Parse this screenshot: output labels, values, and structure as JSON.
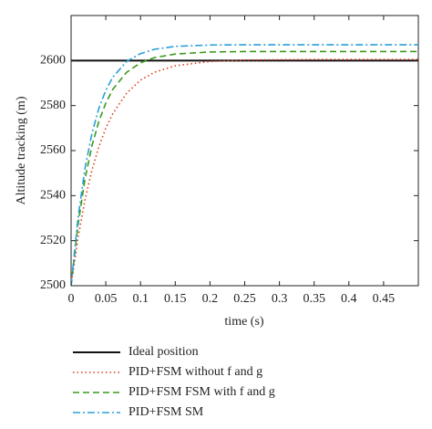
{
  "chart_data": {
    "type": "line",
    "x_label": "time (s)",
    "y_label": "Altitude tracking (m)",
    "x": [
      0,
      0.01,
      0.02,
      0.03,
      0.04,
      0.05,
      0.06,
      0.08,
      0.1,
      0.12,
      0.15,
      0.2,
      0.25,
      0.3,
      0.35,
      0.4,
      0.45,
      0.5
    ],
    "series": [
      {
        "name": "Ideal position",
        "color": "#111111",
        "style": "solid",
        "values": [
          2600,
          2600,
          2600,
          2600,
          2600,
          2600,
          2600,
          2600,
          2600,
          2600,
          2600,
          2600,
          2600,
          2600,
          2600,
          2600,
          2600,
          2600
        ]
      },
      {
        "name": "PID+FSM without f and g",
        "color": "#e03c1e",
        "style": "dotted",
        "values": [
          2500,
          2521.3,
          2538.1,
          2551.3,
          2561.7,
          2570.0,
          2576.4,
          2585.5,
          2591.3,
          2594.8,
          2597.7,
          2599.6,
          2600.2,
          2600.4,
          2600.5,
          2600.5,
          2600.5,
          2600.5
        ]
      },
      {
        "name": "PID+FSM FSM with f and g",
        "color": "#3a9a1a",
        "style": "dashed",
        "values": [
          2500,
          2527.1,
          2547.3,
          2562.1,
          2573.0,
          2581.1,
          2587.2,
          2594.8,
          2599.0,
          2601.3,
          2602.9,
          2603.8,
          2604,
          2604,
          2604,
          2604,
          2604,
          2604
        ]
      },
      {
        "name": "PID+FSM SM",
        "color": "#2a9fd8",
        "style": "dashdot",
        "values": [
          2500,
          2530.3,
          2552.1,
          2567.6,
          2578.8,
          2586.8,
          2592.6,
          2599.6,
          2603.1,
          2605.0,
          2606.3,
          2606.9,
          2607,
          2607,
          2607,
          2607,
          2607,
          2607
        ]
      }
    ],
    "xlim": [
      0,
      0.5
    ],
    "ylim": [
      2500,
      2620
    ],
    "xticks": [
      0,
      0.05,
      0.1,
      0.15,
      0.2,
      0.25,
      0.3,
      0.35,
      0.4,
      0.45
    ],
    "yticks": [
      2500,
      2520,
      2540,
      2560,
      2580,
      2600
    ],
    "grid": false,
    "legend": "below"
  }
}
